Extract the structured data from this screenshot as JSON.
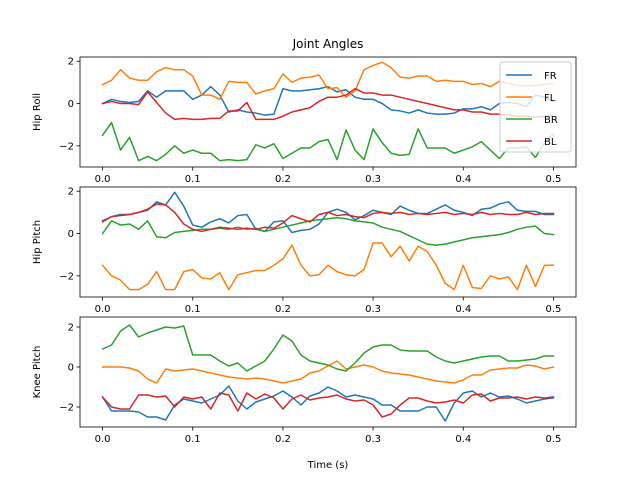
{
  "chart_data": {
    "type": "line",
    "title": "Joint Angles",
    "xlabel": "Time (s)",
    "legend": {
      "placement": "top-right",
      "entries": [
        "FR",
        "FL",
        "BR",
        "BL"
      ]
    },
    "colors": {
      "FR": "#1f77b4",
      "FL": "#ff7f0e",
      "BR": "#2ca02c",
      "BL": "#d62728"
    },
    "xlim": [
      -0.025,
      0.525
    ],
    "xticks": [
      0.0,
      0.1,
      0.2,
      0.3,
      0.4,
      0.5
    ],
    "xtick_labels": [
      "0.0",
      "0.1",
      "0.2",
      "0.3",
      "0.4",
      "0.5"
    ],
    "x": [
      0.0,
      0.01,
      0.02,
      0.03,
      0.04,
      0.05,
      0.06,
      0.07,
      0.08,
      0.09,
      0.1,
      0.11,
      0.12,
      0.13,
      0.14,
      0.15,
      0.16,
      0.17,
      0.18,
      0.19,
      0.2,
      0.21,
      0.22,
      0.23,
      0.24,
      0.25,
      0.26,
      0.27,
      0.28,
      0.29,
      0.3,
      0.31,
      0.32,
      0.33,
      0.34,
      0.35,
      0.36,
      0.37,
      0.38,
      0.39,
      0.4,
      0.41,
      0.42,
      0.43,
      0.44,
      0.45,
      0.46,
      0.47,
      0.48,
      0.49,
      0.5
    ],
    "subplots": [
      {
        "ylabel": "Hip Roll",
        "ylim": [
          -3.0,
          2.2
        ],
        "yticks": [
          -2,
          0,
          2
        ],
        "ytick_labels": [
          "−2",
          "0",
          "2"
        ],
        "series": [
          {
            "name": "FR",
            "values": [
              0.0,
              0.2,
              0.1,
              0.05,
              0.1,
              0.6,
              0.3,
              0.6,
              0.6,
              0.6,
              0.2,
              0.4,
              0.8,
              0.4,
              -0.4,
              -0.3,
              -0.4,
              -0.45,
              -0.55,
              -0.5,
              0.7,
              0.6,
              0.6,
              0.65,
              0.7,
              0.8,
              0.55,
              0.65,
              0.3,
              0.2,
              0.2,
              0.0,
              -0.3,
              -0.35,
              -0.45,
              -0.3,
              -0.45,
              -0.5,
              -0.5,
              -0.45,
              -0.25,
              -0.25,
              -0.15,
              -0.3,
              0.0,
              0.05,
              0.0,
              -0.15,
              0.4,
              0.3,
              0.1
            ]
          },
          {
            "name": "FL",
            "values": [
              0.9,
              1.1,
              1.6,
              1.2,
              1.1,
              1.1,
              1.5,
              1.7,
              1.6,
              1.6,
              1.3,
              0.4,
              0.4,
              0.2,
              1.05,
              1.0,
              1.0,
              0.45,
              0.6,
              0.7,
              1.4,
              1.0,
              1.2,
              1.25,
              1.35,
              0.7,
              0.75,
              0.3,
              0.6,
              1.6,
              1.8,
              1.95,
              1.7,
              1.25,
              1.2,
              1.3,
              1.3,
              1.05,
              1.1,
              1.05,
              1.05,
              0.9,
              0.95,
              0.8,
              1.05,
              0.95,
              0.85,
              0.85,
              0.85,
              0.9,
              0.95
            ]
          },
          {
            "name": "BR",
            "values": [
              -1.5,
              -0.9,
              -2.2,
              -1.6,
              -2.7,
              -2.5,
              -2.7,
              -2.4,
              -2.0,
              -2.35,
              -2.2,
              -2.35,
              -2.35,
              -2.7,
              -2.65,
              -2.7,
              -2.65,
              -1.95,
              -2.1,
              -1.9,
              -2.6,
              -2.35,
              -2.1,
              -2.1,
              -1.8,
              -1.7,
              -2.65,
              -1.25,
              -2.2,
              -2.65,
              -1.2,
              -1.85,
              -2.35,
              -2.45,
              -2.4,
              -1.2,
              -2.1,
              -2.1,
              -2.1,
              -2.35,
              -2.2,
              -2.05,
              -1.8,
              -2.2,
              -2.6,
              -2.1,
              -2.1,
              -2.05,
              -2.55,
              -1.85,
              -1.45
            ]
          },
          {
            "name": "BL",
            "values": [
              0.0,
              0.1,
              0.0,
              0.0,
              -0.05,
              0.55,
              0.05,
              -0.45,
              -0.75,
              -0.7,
              -0.75,
              -0.75,
              -0.7,
              -0.7,
              -0.35,
              -0.35,
              0.05,
              -0.75,
              -0.75,
              -0.75,
              -0.6,
              -0.4,
              -0.3,
              -0.2,
              0.1,
              0.3,
              0.3,
              0.4,
              0.7,
              0.5,
              0.5,
              0.4,
              0.4,
              0.3,
              0.2,
              0.1,
              0.0,
              -0.1,
              -0.2,
              -0.3,
              -0.3,
              -0.4,
              -0.4,
              -0.5,
              -0.5,
              -0.55,
              -0.6,
              -0.6,
              -0.65,
              -0.6,
              -0.6
            ]
          }
        ]
      },
      {
        "ylabel": "Hip Pitch",
        "ylim": [
          -3.0,
          2.2
        ],
        "yticks": [
          -2,
          0,
          2
        ],
        "ytick_labels": [
          "−2",
          "0",
          "2"
        ],
        "series": [
          {
            "name": "FR",
            "values": [
              0.6,
              0.8,
              0.9,
              0.9,
              1.0,
              1.1,
              1.5,
              1.35,
              1.95,
              1.3,
              0.4,
              0.3,
              0.55,
              0.7,
              0.5,
              0.85,
              0.9,
              0.2,
              0.1,
              0.55,
              0.6,
              0.05,
              0.15,
              0.2,
              0.45,
              1.0,
              1.15,
              1.0,
              0.65,
              0.85,
              1.1,
              1.0,
              0.9,
              1.3,
              1.1,
              0.95,
              0.95,
              1.15,
              1.35,
              1.1,
              1.0,
              0.85,
              1.15,
              1.2,
              1.4,
              1.5,
              1.1,
              1.05,
              1.05,
              0.9,
              0.9
            ]
          },
          {
            "name": "FL",
            "values": [
              -1.5,
              -2.0,
              -2.2,
              -2.65,
              -2.65,
              -2.4,
              -1.8,
              -2.65,
              -2.65,
              -1.8,
              -1.7,
              -2.1,
              -2.15,
              -1.85,
              -2.65,
              -1.95,
              -1.85,
              -1.75,
              -1.75,
              -1.5,
              -1.2,
              -0.55,
              -1.5,
              -2.0,
              -1.95,
              -1.5,
              -1.8,
              -1.95,
              -2.0,
              -1.7,
              -0.45,
              -0.45,
              -1.1,
              -0.6,
              -1.3,
              -0.6,
              -0.85,
              -1.5,
              -2.35,
              -2.65,
              -1.5,
              -2.55,
              -2.6,
              -2.0,
              -2.15,
              -2.05,
              -2.65,
              -1.5,
              -2.5,
              -1.5,
              -1.5
            ]
          },
          {
            "name": "BR",
            "values": [
              0.0,
              0.6,
              0.4,
              0.45,
              0.2,
              0.6,
              -0.15,
              -0.2,
              0.05,
              0.1,
              0.15,
              0.2,
              0.2,
              0.25,
              0.2,
              0.3,
              0.2,
              0.25,
              0.1,
              0.2,
              0.3,
              0.4,
              0.5,
              0.6,
              0.65,
              0.7,
              0.75,
              0.7,
              0.6,
              0.55,
              0.5,
              0.3,
              0.2,
              0.1,
              -0.1,
              -0.3,
              -0.5,
              -0.55,
              -0.5,
              -0.4,
              -0.3,
              -0.2,
              -0.15,
              -0.1,
              -0.05,
              0.05,
              0.2,
              0.3,
              0.35,
              0.0,
              -0.05
            ]
          },
          {
            "name": "BL",
            "values": [
              0.55,
              0.8,
              0.85,
              0.9,
              1.0,
              1.15,
              1.4,
              1.35,
              1.0,
              0.45,
              0.2,
              0.1,
              0.2,
              0.3,
              0.25,
              0.2,
              0.25,
              0.2,
              0.3,
              0.25,
              0.5,
              0.85,
              0.7,
              0.55,
              0.9,
              1.0,
              0.85,
              0.9,
              0.8,
              0.75,
              0.95,
              1.0,
              0.95,
              1.0,
              0.9,
              0.95,
              0.9,
              0.95,
              1.0,
              0.9,
              0.95,
              0.9,
              1.0,
              0.9,
              0.95,
              0.9,
              0.9,
              1.0,
              0.9,
              0.95,
              0.95
            ]
          }
        ]
      },
      {
        "ylabel": "Knee Pitch",
        "ylim": [
          -3.0,
          2.5
        ],
        "yticks": [
          -2,
          0,
          2
        ],
        "ytick_labels": [
          "−2",
          "0",
          "2"
        ],
        "series": [
          {
            "name": "FR",
            "values": [
              -1.5,
              -2.2,
              -2.2,
              -2.2,
              -2.25,
              -2.5,
              -2.5,
              -2.65,
              -1.9,
              -1.6,
              -1.7,
              -1.8,
              -1.6,
              -1.4,
              -0.95,
              -1.7,
              -2.1,
              -1.75,
              -1.6,
              -1.45,
              -1.2,
              -1.5,
              -1.9,
              -1.45,
              -1.3,
              -1.0,
              -1.2,
              -1.5,
              -1.4,
              -1.5,
              -1.6,
              -1.9,
              -1.9,
              -2.2,
              -2.2,
              -2.2,
              -2.0,
              -2.0,
              -2.7,
              -1.8,
              -1.3,
              -1.2,
              -1.5,
              -1.3,
              -1.5,
              -1.45,
              -1.6,
              -1.8,
              -1.7,
              -1.6,
              -1.55
            ]
          },
          {
            "name": "FL",
            "values": [
              0.0,
              0.0,
              0.0,
              -0.05,
              -0.2,
              -0.6,
              -0.8,
              -0.1,
              -0.2,
              -0.15,
              -0.1,
              -0.2,
              -0.3,
              -0.4,
              -0.5,
              -0.55,
              -0.6,
              -0.55,
              -0.6,
              -0.7,
              -0.8,
              -0.7,
              -0.6,
              -0.3,
              -0.2,
              0.05,
              0.3,
              -0.1,
              0.0,
              0.1,
              0.0,
              -0.2,
              -0.3,
              -0.35,
              -0.4,
              -0.5,
              -0.6,
              -0.7,
              -0.75,
              -0.8,
              -0.65,
              -0.4,
              -0.4,
              -0.15,
              -0.1,
              -0.05,
              -0.05,
              0.1,
              0.05,
              -0.1,
              0.0
            ]
          },
          {
            "name": "BR",
            "values": [
              0.9,
              1.1,
              1.8,
              2.1,
              1.5,
              1.7,
              1.85,
              2.0,
              1.95,
              2.05,
              0.6,
              0.6,
              0.6,
              0.3,
              0.05,
              0.2,
              -0.2,
              0.05,
              0.3,
              0.9,
              1.6,
              1.3,
              0.6,
              0.3,
              0.2,
              0.1,
              -0.1,
              -0.2,
              0.2,
              0.7,
              1.0,
              1.1,
              1.1,
              0.85,
              0.8,
              0.8,
              0.8,
              0.5,
              0.3,
              0.2,
              0.3,
              0.4,
              0.5,
              0.55,
              0.55,
              0.3,
              0.3,
              0.35,
              0.4,
              0.55,
              0.55
            ]
          },
          {
            "name": "BL",
            "values": [
              -1.5,
              -2.0,
              -2.1,
              -2.1,
              -1.4,
              -1.4,
              -1.5,
              -1.45,
              -2.0,
              -1.5,
              -1.6,
              -1.5,
              -2.1,
              -1.3,
              -1.4,
              -2.2,
              -1.3,
              -1.6,
              -1.35,
              -1.55,
              -2.1,
              -1.6,
              -1.4,
              -1.65,
              -1.55,
              -1.5,
              -1.4,
              -1.6,
              -1.7,
              -1.65,
              -1.9,
              -2.5,
              -2.35,
              -1.9,
              -1.55,
              -1.55,
              -1.7,
              -1.8,
              -1.75,
              -1.65,
              -1.8,
              -1.4,
              -1.35,
              -1.7,
              -1.55,
              -1.55,
              -1.5,
              -1.6,
              -1.5,
              -1.55,
              -1.5
            ]
          }
        ]
      }
    ]
  }
}
